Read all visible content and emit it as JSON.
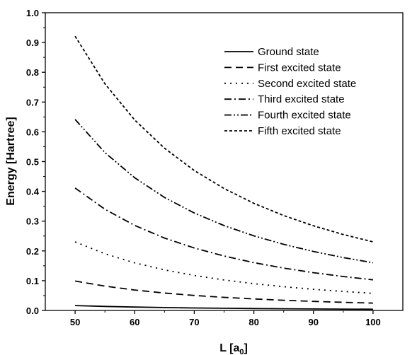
{
  "chart_data": {
    "type": "line",
    "xlabel": "L [a",
    "xlabel_sub": "0",
    "xlabel_end": "]",
    "ylabel": "Energy [Hartree]",
    "xlim": [
      45,
      105
    ],
    "ylim": [
      0.0,
      1.0
    ],
    "xticks": [
      "50",
      "60",
      "70",
      "80",
      "90",
      "100"
    ],
    "yticks": [
      "0.0",
      "0.1",
      "0.2",
      "0.3",
      "0.4",
      "0.5",
      "0.6",
      "0.7",
      "0.8",
      "0.9",
      "1.0"
    ],
    "legend_position": "top-right",
    "grid": false,
    "x": [
      50,
      55,
      60,
      65,
      70,
      75,
      80,
      85,
      90,
      95,
      100
    ],
    "series": [
      {
        "name": "Ground state",
        "style": "solid",
        "values": [
          0.0164,
          0.0136,
          0.0114,
          0.0097,
          0.0084,
          0.0073,
          0.0064,
          0.0057,
          0.0051,
          0.0045,
          0.0041
        ]
      },
      {
        "name": "First excited state",
        "style": "dash",
        "values": [
          0.0987,
          0.0816,
          0.0686,
          0.0584,
          0.0503,
          0.0439,
          0.0386,
          0.0342,
          0.0305,
          0.0273,
          0.0247
        ]
      },
      {
        "name": "Second excited state",
        "style": "dot",
        "values": [
          0.2303,
          0.1903,
          0.1599,
          0.1363,
          0.1175,
          0.1024,
          0.09,
          0.0797,
          0.0711,
          0.0638,
          0.0576
        ]
      },
      {
        "name": "Third excited state",
        "style": "dashdot",
        "values": [
          0.4112,
          0.3398,
          0.2856,
          0.2433,
          0.2098,
          0.1828,
          0.1606,
          0.1423,
          0.1269,
          0.1139,
          0.1028
        ]
      },
      {
        "name": "Fourth excited state",
        "style": "dashdotdot",
        "values": [
          0.6415,
          0.5302,
          0.4455,
          0.3796,
          0.3273,
          0.2851,
          0.2506,
          0.222,
          0.198,
          0.1777,
          0.1604
        ]
      },
      {
        "name": "Fifth excited state",
        "style": "shortdash",
        "values": [
          0.9212,
          0.7613,
          0.6397,
          0.5451,
          0.47,
          0.4094,
          0.3598,
          0.3187,
          0.2843,
          0.2552,
          0.2303
        ]
      }
    ]
  }
}
